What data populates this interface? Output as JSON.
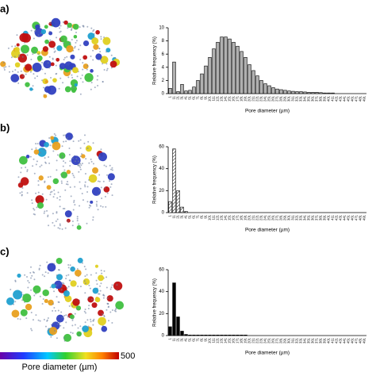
{
  "chart_data": [
    {
      "type": "bar",
      "panel_label": "a)",
      "ylabel": "Relative frequency (%)",
      "xlabel": "Pore diameter (µm)",
      "color": "#b0b0b0",
      "hatch": false,
      "categories": [
        "1",
        "11",
        "21",
        "31",
        "41",
        "51",
        "61",
        "71",
        "81",
        "91",
        "101",
        "111",
        "121",
        "131",
        "141",
        "151",
        "161",
        "171",
        "181",
        "191",
        "201",
        "211",
        "221",
        "231",
        "241",
        "251",
        "261",
        "271",
        "281",
        "291",
        "301",
        "311",
        "321",
        "331",
        "341",
        "351",
        "361",
        "371",
        "381",
        "391",
        "401",
        "411",
        "421",
        "431",
        "441",
        "451",
        "461",
        "471",
        "481",
        "491"
      ],
      "values": [
        0.8,
        4.8,
        0.3,
        1.4,
        0.4,
        0.5,
        1.0,
        2.0,
        3.0,
        4.2,
        5.5,
        6.8,
        7.8,
        8.6,
        8.6,
        8.3,
        7.8,
        7.2,
        6.4,
        5.5,
        4.4,
        3.5,
        2.7,
        2.0,
        1.5,
        1.2,
        0.9,
        0.7,
        0.6,
        0.5,
        0.4,
        0.35,
        0.3,
        0.3,
        0.25,
        0.2,
        0.2,
        0.2,
        0.15,
        0.1,
        0.1,
        0.1,
        0,
        0,
        0,
        0,
        0,
        0,
        0,
        0
      ],
      "ylim": [
        0,
        10
      ],
      "yticks": [
        0,
        2,
        4,
        6,
        8,
        10
      ]
    },
    {
      "type": "bar",
      "panel_label": "b)",
      "ylabel": "Relative frequency (%)",
      "xlabel": "Pore diameter (µm)",
      "color": "#ffffff",
      "hatch": true,
      "categories": [
        "1",
        "11",
        "21",
        "31",
        "41",
        "51",
        "61",
        "71",
        "81",
        "91",
        "101",
        "111",
        "121",
        "131",
        "141",
        "151",
        "161",
        "171",
        "181",
        "191",
        "201",
        "211",
        "221",
        "231",
        "241",
        "251",
        "261",
        "271",
        "281",
        "291",
        "301",
        "311",
        "321",
        "331",
        "341",
        "351",
        "361",
        "371",
        "381",
        "391",
        "401",
        "411",
        "421",
        "431",
        "441",
        "451",
        "461",
        "471",
        "481",
        "491"
      ],
      "values": [
        10,
        58,
        20,
        5,
        1,
        0,
        0,
        0,
        0,
        0,
        0,
        0,
        0,
        0,
        0,
        0,
        0,
        0,
        0,
        0,
        0,
        0,
        0,
        0,
        0,
        0,
        0,
        0,
        0,
        0,
        0,
        0,
        0,
        0,
        0,
        0,
        0,
        0,
        0,
        0,
        0,
        0,
        0,
        0,
        0,
        0,
        0,
        0,
        0,
        0
      ],
      "ylim": [
        0,
        60
      ],
      "yticks": [
        0,
        20,
        40,
        60
      ]
    },
    {
      "type": "bar",
      "panel_label": "c)",
      "ylabel": "Relative frequency (%)",
      "xlabel": "Pore diameter (µm)",
      "color": "#000000",
      "hatch": false,
      "categories": [
        "1",
        "11",
        "21",
        "31",
        "41",
        "51",
        "61",
        "71",
        "81",
        "91",
        "101",
        "111",
        "121",
        "131",
        "141",
        "151",
        "161",
        "171",
        "181",
        "191",
        "201",
        "211",
        "221",
        "231",
        "241",
        "251",
        "261",
        "271",
        "281",
        "291",
        "301",
        "311",
        "321",
        "331",
        "341",
        "351",
        "361",
        "371",
        "381",
        "391",
        "401",
        "411",
        "421",
        "431",
        "441",
        "451",
        "461",
        "471",
        "481",
        "491"
      ],
      "values": [
        8,
        48,
        17,
        4,
        1,
        0.5,
        0.5,
        0.5,
        0.5,
        0.5,
        0.5,
        0.5,
        0.5,
        0.5,
        0.5,
        0.5,
        0.5,
        0.5,
        0.5,
        0.5,
        0,
        0,
        0,
        0,
        0,
        0,
        0,
        0,
        0,
        0,
        0,
        0,
        0,
        0,
        0,
        0,
        0,
        0,
        0,
        0,
        0,
        0,
        0,
        0,
        0,
        0,
        0,
        0,
        0,
        0
      ],
      "ylim": [
        0,
        60
      ],
      "yticks": [
        0,
        20,
        40,
        60
      ]
    }
  ],
  "colorbar": {
    "label": "Pore diameter (µm)",
    "max": 500
  }
}
